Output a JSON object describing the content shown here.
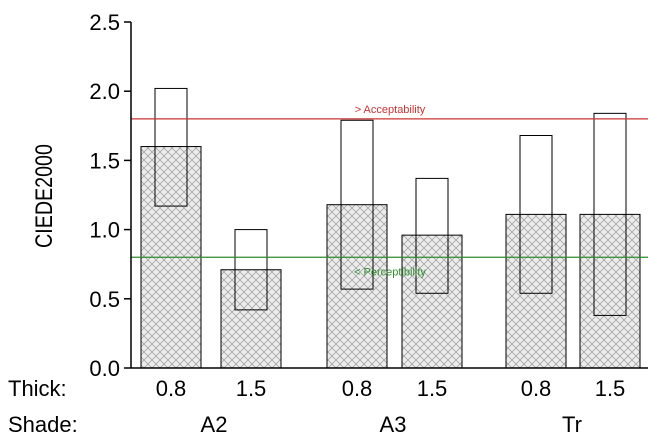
{
  "chart_data": {
    "type": "bar",
    "ylabel": "CIEDE2000",
    "ylim": [
      0,
      2.5
    ],
    "yticks": [
      "0.0",
      "0.5",
      "1.0",
      "1.5",
      "2.0",
      "2.5"
    ],
    "row_labels": {
      "thick": "Thick:",
      "shade": "Shade:"
    },
    "groups": [
      {
        "shade": "A2",
        "bars": [
          {
            "thick": "0.8",
            "mean": 1.6,
            "low": 1.17,
            "high": 2.02
          },
          {
            "thick": "1.5",
            "mean": 0.71,
            "low": 0.42,
            "high": 1.0
          }
        ]
      },
      {
        "shade": "A3",
        "bars": [
          {
            "thick": "0.8",
            "mean": 1.18,
            "low": 0.57,
            "high": 1.79
          },
          {
            "thick": "1.5",
            "mean": 0.96,
            "low": 0.54,
            "high": 1.37
          }
        ]
      },
      {
        "shade": "Tr",
        "bars": [
          {
            "thick": "0.8",
            "mean": 1.11,
            "low": 0.54,
            "high": 1.68
          },
          {
            "thick": "1.5",
            "mean": 1.11,
            "low": 0.38,
            "high": 1.84
          }
        ]
      }
    ],
    "reference_lines": [
      {
        "label": "> Acceptability",
        "value": 1.8,
        "color": "#cc3333"
      },
      {
        "label": "< Perceptibility",
        "value": 0.8,
        "color": "#2e8b2e"
      }
    ],
    "grid": false,
    "bar_fill": "crosshatch"
  }
}
